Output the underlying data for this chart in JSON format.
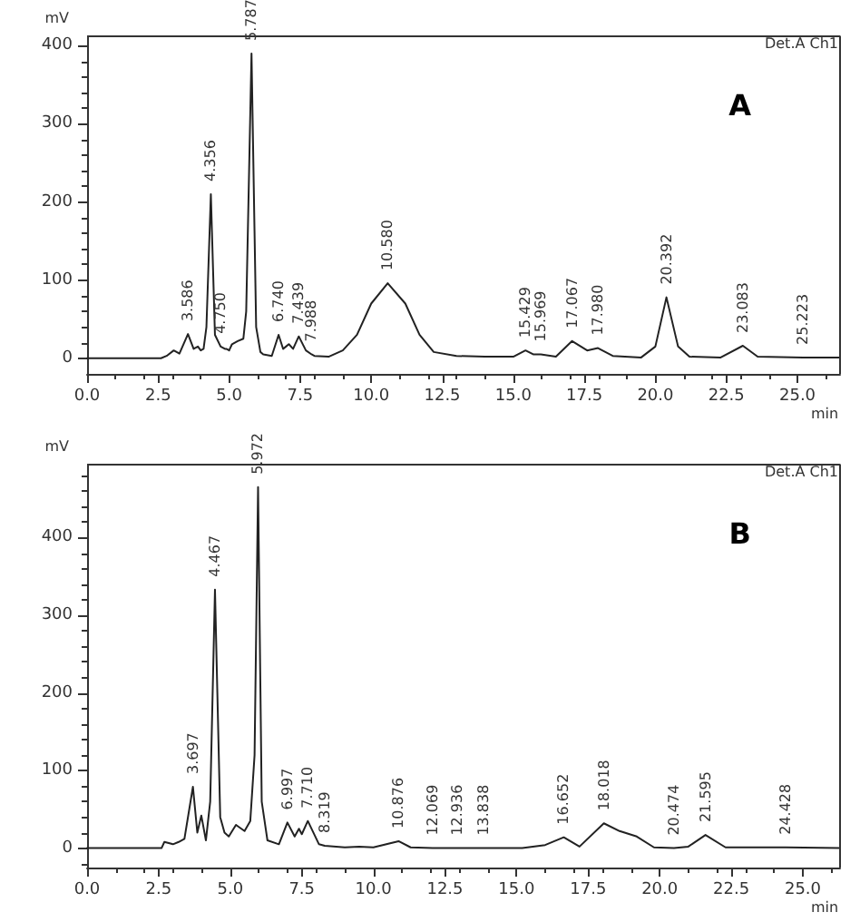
{
  "chart_data": [
    {
      "type": "line",
      "xlabel": "min",
      "ylabel": "mV",
      "xlim": [
        0,
        26.5
      ],
      "ylim": [
        -20,
        412
      ],
      "xticks": [
        {
          "value": 0,
          "label": "0.0"
        },
        {
          "value": 2.5,
          "label": "2.5"
        },
        {
          "value": 5,
          "label": "5.0"
        },
        {
          "value": 7.5,
          "label": "7.5"
        },
        {
          "value": 10,
          "label": "10.0"
        },
        {
          "value": 12.5,
          "label": "12.5"
        },
        {
          "value": 15,
          "label": "15.0"
        },
        {
          "value": 17.5,
          "label": "17.5"
        },
        {
          "value": 20,
          "label": "20.0"
        },
        {
          "value": 22.5,
          "label": "22.5"
        },
        {
          "value": 25,
          "label": "25.0"
        }
      ],
      "yticks": [
        0,
        100,
        200,
        300,
        400
      ],
      "grid": false,
      "marker": "none",
      "line_style": "solid",
      "series": [
        {
          "color": "#222222",
          "x": [
            0,
            2.6,
            2.8,
            3.05,
            3.25,
            3.55,
            3.75,
            3.9,
            4.0,
            4.1,
            4.2,
            4.356,
            4.5,
            4.7,
            4.85,
            4.9,
            5.0,
            5.1,
            5.3,
            5.5,
            5.6,
            5.787,
            5.95,
            6.1,
            6.2,
            6.5,
            6.74,
            6.9,
            7.0,
            7.1,
            7.25,
            7.45,
            7.7,
            7.9,
            8.0,
            8.5,
            9.0,
            9.5,
            10.0,
            10.58,
            11.2,
            11.7,
            12.2,
            13.0,
            14.0,
            15.0,
            15.43,
            15.7,
            15.97,
            16.5,
            17.07,
            17.6,
            17.98,
            18.5,
            19.5,
            20.0,
            20.39,
            20.8,
            21.2,
            22.3,
            23.08,
            23.6,
            25.2,
            26.5
          ],
          "values": [
            0,
            0,
            3,
            10,
            6,
            31,
            12,
            15,
            10,
            12,
            40,
            210,
            30,
            15,
            12,
            12,
            10,
            18,
            22,
            25,
            60,
            390,
            40,
            8,
            5,
            3,
            30,
            12,
            15,
            18,
            12,
            28,
            10,
            5,
            3,
            2,
            10,
            30,
            70,
            96,
            70,
            30,
            8,
            3,
            2,
            2,
            10,
            5,
            5,
            2,
            22,
            10,
            13,
            3,
            1,
            15,
            78,
            15,
            2,
            1,
            16,
            2,
            1,
            1
          ]
        }
      ],
      "annotations": [
        "Det.A Ch1",
        "A",
        {
          "text": "3.586",
          "x": 3.55,
          "y": 31
        },
        {
          "text": "4.356",
          "x": 4.356,
          "y": 210
        },
        {
          "text": "4.750",
          "x": 4.7,
          "y": 15
        },
        {
          "text": "5.787",
          "x": 5.787,
          "y": 390
        },
        {
          "text": "6.740",
          "x": 6.74,
          "y": 30
        },
        {
          "text": "7.439",
          "x": 7.45,
          "y": 28
        },
        {
          "text": "7.988",
          "x": 7.9,
          "y": 5
        },
        {
          "text": "10.580",
          "x": 10.58,
          "y": 96
        },
        {
          "text": "15.429",
          "x": 15.43,
          "y": 10
        },
        {
          "text": "15.969",
          "x": 15.97,
          "y": 5
        },
        {
          "text": "17.067",
          "x": 17.07,
          "y": 22
        },
        {
          "text": "17.980",
          "x": 17.98,
          "y": 13
        },
        {
          "text": "20.392",
          "x": 20.39,
          "y": 78
        },
        {
          "text": "23.083",
          "x": 23.08,
          "y": 16
        },
        {
          "text": "25.223",
          "x": 25.2,
          "y": 1
        }
      ]
    },
    {
      "type": "line",
      "xlabel": "min",
      "ylabel": "mV",
      "xlim": [
        0,
        26.3
      ],
      "ylim": [
        -25,
        494
      ],
      "xticks": [
        {
          "value": 0,
          "label": "0.0"
        },
        {
          "value": 2.5,
          "label": "2.5"
        },
        {
          "value": 5,
          "label": "5.0"
        },
        {
          "value": 7.5,
          "label": "7.5"
        },
        {
          "value": 10,
          "label": "10.0"
        },
        {
          "value": 12.5,
          "label": "12.5"
        },
        {
          "value": 15,
          "label": "15.0"
        },
        {
          "value": 17.5,
          "label": "17.5"
        },
        {
          "value": 20,
          "label": "20.0"
        },
        {
          "value": 22.5,
          "label": "22.5"
        },
        {
          "value": 25,
          "label": "25.0"
        }
      ],
      "yticks": [
        0,
        100,
        200,
        300,
        400
      ],
      "grid": false,
      "marker": "none",
      "line_style": "solid",
      "series": [
        {
          "color": "#222222",
          "x": [
            0,
            2.6,
            2.7,
            3.0,
            3.2,
            3.4,
            3.697,
            3.85,
            3.99,
            4.15,
            4.3,
            4.467,
            4.65,
            4.8,
            4.95,
            5.2,
            5.5,
            5.7,
            5.85,
            5.972,
            6.1,
            6.3,
            6.7,
            6.997,
            7.25,
            7.4,
            7.5,
            7.71,
            8.1,
            8.3,
            9.0,
            9.5,
            10.0,
            10.88,
            11.3,
            12.07,
            15.2,
            16.0,
            16.65,
            17.2,
            18.05,
            18.6,
            19.2,
            19.8,
            20.5,
            21.0,
            21.6,
            22.3,
            24.4,
            26.3
          ],
          "values": [
            0,
            0,
            8,
            5,
            8,
            12,
            79,
            20,
            42,
            10,
            60,
            333,
            40,
            20,
            15,
            30,
            22,
            35,
            120,
            465,
            60,
            10,
            5,
            33,
            15,
            25,
            18,
            35,
            5,
            3,
            1,
            2,
            1,
            9,
            1,
            0,
            0,
            4,
            14,
            2,
            32,
            22,
            15,
            1,
            0,
            2,
            17,
            1,
            1,
            0
          ]
        }
      ],
      "annotations": [
        "Det.A Ch1",
        "B",
        {
          "text": "3.697",
          "x": 3.697,
          "y": 79
        },
        {
          "text": "4.467",
          "x": 4.467,
          "y": 333
        },
        {
          "text": "5.972",
          "x": 5.972,
          "y": 465
        },
        {
          "text": "6.997",
          "x": 6.997,
          "y": 33
        },
        {
          "text": "7.710",
          "x": 7.71,
          "y": 35
        },
        {
          "text": "8.319",
          "x": 8.3,
          "y": 3
        },
        {
          "text": "10.876",
          "x": 10.88,
          "y": 9
        },
        {
          "text": "12.069",
          "x": 12.07,
          "y": 0
        },
        {
          "text": "12.936",
          "x": 12.936,
          "y": 0
        },
        {
          "text": "13.838",
          "x": 13.838,
          "y": 0
        },
        {
          "text": "16.652",
          "x": 16.65,
          "y": 14
        },
        {
          "text": "18.018",
          "x": 18.05,
          "y": 32
        },
        {
          "text": "20.474",
          "x": 20.5,
          "y": 0
        },
        {
          "text": "21.595",
          "x": 21.6,
          "y": 17
        },
        {
          "text": "24.428",
          "x": 24.4,
          "y": 1
        }
      ]
    }
  ]
}
